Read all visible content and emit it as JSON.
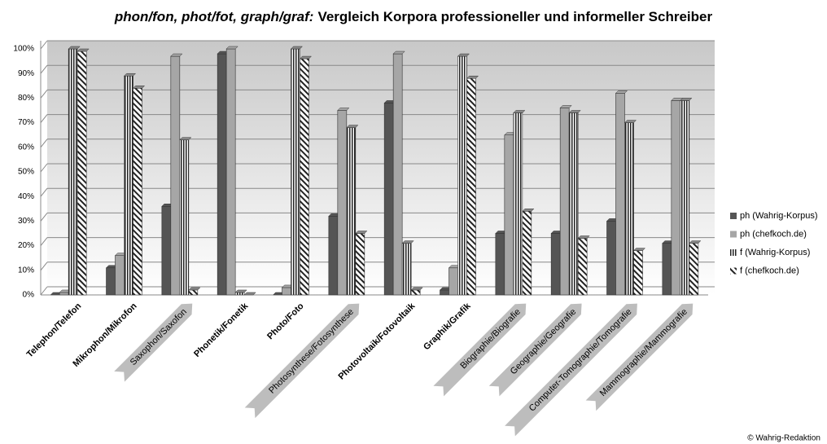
{
  "chart_data": {
    "type": "bar",
    "title": [
      "phon/fon, phot/fot, graph/graf:",
      "Vergleich Korpora professioneller und informeller Schreiber"
    ],
    "categories": [
      "Telephon/Telefon",
      "Mikrophon/Mikrofon",
      "Saxophon/Saxofon",
      "Phonetik/Fonetik",
      "Photo/Foto",
      "Photosynthese/Fotosynthese",
      "Photovoltaik/Fotovoltaik",
      "Graphik/Grafik",
      "Biographie/Biografie",
      "Geographie/Geografie",
      "Computer-Tomographie/Tomografie",
      "Mammographie/Mammografie"
    ],
    "highlight": [
      false,
      false,
      true,
      false,
      false,
      true,
      false,
      false,
      true,
      true,
      true,
      true
    ],
    "series": [
      {
        "name": "ph (Wahrig-Korpus)",
        "color": "#555555",
        "pattern": "solid",
        "values": [
          0,
          11,
          36,
          98,
          0,
          32,
          78,
          2,
          25,
          25,
          30,
          21
        ]
      },
      {
        "name": "ph (chefkoch.de)",
        "color": "#a6a6a6",
        "pattern": "solid",
        "values": [
          1,
          16,
          97,
          100,
          3,
          75,
          98,
          11,
          65,
          76,
          82,
          79
        ]
      },
      {
        "name": "f (Wahrig-Korpus)",
        "color": "#222222",
        "pattern": "vertical",
        "values": [
          100,
          89,
          63,
          1,
          100,
          68,
          21,
          97,
          74,
          74,
          70,
          79
        ]
      },
      {
        "name": "f (chefkoch.de)",
        "color": "#222222",
        "pattern": "diagonal",
        "values": [
          99,
          84,
          2,
          0,
          96,
          25,
          2,
          88,
          34,
          23,
          18,
          21
        ]
      }
    ],
    "ylim": [
      0,
      100
    ],
    "yticks": [
      {
        "value": 0,
        "label": "0%"
      },
      {
        "value": 10,
        "label": "10%"
      },
      {
        "value": 20,
        "label": "20%"
      },
      {
        "value": 30,
        "label": "30%"
      },
      {
        "value": 40,
        "label": "40%"
      },
      {
        "value": 50,
        "label": "50%"
      },
      {
        "value": 60,
        "label": "60%"
      },
      {
        "value": 70,
        "label": "70%"
      },
      {
        "value": 80,
        "label": "80%"
      },
      {
        "value": 90,
        "label": "90%"
      },
      {
        "value": 100,
        "label": "100%"
      }
    ],
    "grid": true,
    "legend": "right",
    "credit": "© Wahrig-Redaktion"
  }
}
